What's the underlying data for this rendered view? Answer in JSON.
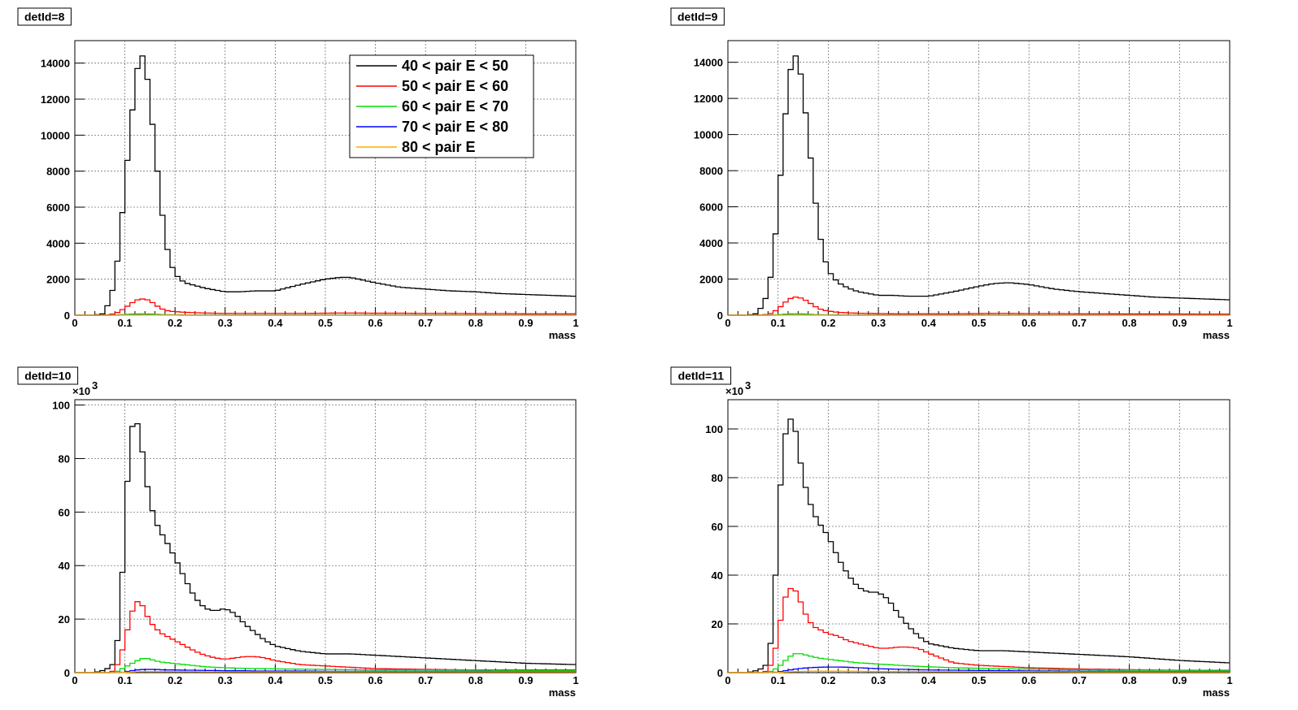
{
  "legend": [
    "40 < pair E < 50",
    "50 < pair E < 60",
    "60 < pair E < 70",
    "70 < pair E < 80",
    "80 < pair E"
  ],
  "series_colors": [
    "#000000",
    "#ff0000",
    "#00dd00",
    "#0000ff",
    "#ffaa00"
  ],
  "chart_data": [
    {
      "type": "line",
      "title": "detId=8",
      "xlabel": "mass",
      "ylabel": "",
      "xlim": [
        0,
        1
      ],
      "ylim": [
        0,
        15250
      ],
      "x_ticks": [
        0,
        0.1,
        0.2,
        0.3,
        0.4,
        0.5,
        0.6,
        0.7,
        0.8,
        0.9,
        1
      ],
      "x_tick_labels": [
        "0",
        "0.1",
        "0.2",
        "0.3",
        "0.4",
        "0.5",
        "0.6",
        "0.7",
        "0.8",
        "0.9",
        "1"
      ],
      "y_ticks": [
        0,
        2000,
        4000,
        6000,
        8000,
        10000,
        12000,
        14000
      ],
      "y_tick_labels": [
        "0",
        "2000",
        "4000",
        "6000",
        "8000",
        "10000",
        "12000",
        "14000"
      ],
      "y_multiplier": "",
      "grid": true,
      "legend_position": "top-right",
      "x": [
        0,
        0.04,
        0.06,
        0.08,
        0.09,
        0.1,
        0.11,
        0.12,
        0.13,
        0.14,
        0.15,
        0.16,
        0.17,
        0.18,
        0.19,
        0.2,
        0.21,
        0.22,
        0.24,
        0.26,
        0.28,
        0.3,
        0.33,
        0.36,
        0.4,
        0.45,
        0.5,
        0.53,
        0.55,
        0.6,
        0.65,
        0.7,
        0.75,
        0.8,
        0.85,
        0.9,
        0.95,
        1
      ],
      "series": [
        {
          "name": "40 < pair E < 50",
          "values": [
            0,
            0,
            100,
            1800,
            4200,
            7200,
            10000,
            12800,
            14600,
            14200,
            12000,
            9200,
            6800,
            4300,
            3000,
            2300,
            2000,
            1800,
            1650,
            1500,
            1400,
            1300,
            1300,
            1350,
            1350,
            1700,
            2000,
            2100,
            2100,
            1800,
            1550,
            1450,
            1350,
            1300,
            1200,
            1150,
            1100,
            1050
          ]
        },
        {
          "name": "50 < pair E < 60",
          "values": [
            0,
            0,
            0,
            80,
            220,
            400,
            600,
            800,
            900,
            900,
            800,
            600,
            400,
            280,
            220,
            200,
            180,
            160,
            140,
            120,
            110,
            100,
            100,
            100,
            100,
            100,
            110,
            120,
            120,
            110,
            110,
            100,
            100,
            90,
            90,
            80,
            80,
            80
          ]
        },
        {
          "name": "60 < pair E < 70",
          "values": [
            0,
            0,
            0,
            10,
            20,
            40,
            60,
            70,
            80,
            80,
            70,
            60,
            40,
            30,
            20,
            20,
            20,
            20,
            10,
            10,
            10,
            10,
            10,
            10,
            10,
            10,
            10,
            10,
            10,
            10,
            10,
            10,
            10,
            10,
            10,
            10,
            10,
            10
          ]
        },
        {
          "name": "70 < pair E < 80",
          "values": [
            0,
            0,
            0,
            0,
            5,
            8,
            10,
            12,
            14,
            14,
            12,
            10,
            8,
            6,
            5,
            4,
            4,
            3,
            3,
            3,
            3,
            2,
            2,
            2,
            2,
            2,
            2,
            2,
            2,
            2,
            2,
            2,
            2,
            2,
            2,
            2,
            2,
            2
          ]
        },
        {
          "name": "80 < pair E",
          "values": [
            0,
            0,
            0,
            0,
            2,
            4,
            5,
            6,
            7,
            7,
            6,
            5,
            4,
            3,
            2,
            2,
            2,
            2,
            1,
            1,
            1,
            1,
            1,
            1,
            1,
            1,
            1,
            1,
            1,
            1,
            1,
            1,
            1,
            1,
            1,
            1,
            1,
            1
          ]
        }
      ]
    },
    {
      "type": "line",
      "title": "detId=9",
      "xlabel": "mass",
      "ylabel": "",
      "xlim": [
        0,
        1
      ],
      "ylim": [
        0,
        15200
      ],
      "x_ticks": [
        0,
        0.1,
        0.2,
        0.3,
        0.4,
        0.5,
        0.6,
        0.7,
        0.8,
        0.9,
        1
      ],
      "x_tick_labels": [
        "0",
        "0.1",
        "0.2",
        "0.3",
        "0.4",
        "0.5",
        "0.6",
        "0.7",
        "0.8",
        "0.9",
        "1"
      ],
      "y_ticks": [
        0,
        2000,
        4000,
        6000,
        8000,
        10000,
        12000,
        14000
      ],
      "y_tick_labels": [
        "0",
        "2000",
        "4000",
        "6000",
        "8000",
        "10000",
        "12000",
        "14000"
      ],
      "y_multiplier": "",
      "grid": true,
      "legend_position": "",
      "x": [
        0,
        0.04,
        0.06,
        0.08,
        0.09,
        0.1,
        0.11,
        0.12,
        0.13,
        0.14,
        0.15,
        0.16,
        0.17,
        0.18,
        0.19,
        0.2,
        0.21,
        0.22,
        0.24,
        0.26,
        0.28,
        0.3,
        0.33,
        0.36,
        0.4,
        0.45,
        0.5,
        0.53,
        0.56,
        0.6,
        0.65,
        0.7,
        0.75,
        0.8,
        0.85,
        0.9,
        0.95,
        1
      ],
      "series": [
        {
          "name": "40 < pair E < 50",
          "values": [
            0,
            0,
            100,
            1200,
            3000,
            6000,
            9500,
            12800,
            14400,
            14300,
            12400,
            10000,
            7400,
            5000,
            3400,
            2500,
            2100,
            1800,
            1500,
            1300,
            1200,
            1100,
            1100,
            1050,
            1050,
            1300,
            1600,
            1750,
            1800,
            1700,
            1450,
            1300,
            1200,
            1100,
            1000,
            950,
            900,
            850
          ]
        },
        {
          "name": "50 < pair E < 60",
          "values": [
            0,
            0,
            0,
            40,
            150,
            350,
            600,
            850,
            1000,
            1000,
            900,
            750,
            550,
            380,
            280,
            230,
            190,
            160,
            130,
            110,
            100,
            90,
            80,
            80,
            80,
            80,
            90,
            100,
            100,
            90,
            90,
            80,
            80,
            70,
            70,
            70,
            60,
            60
          ]
        },
        {
          "name": "60 < pair E < 70",
          "values": [
            0,
            0,
            0,
            5,
            15,
            30,
            50,
            70,
            80,
            80,
            70,
            60,
            40,
            30,
            20,
            20,
            20,
            10,
            10,
            10,
            10,
            10,
            10,
            10,
            10,
            10,
            10,
            10,
            10,
            10,
            10,
            10,
            10,
            10,
            10,
            10,
            10,
            10
          ]
        },
        {
          "name": "70 < pair E < 80",
          "values": [
            0,
            0,
            0,
            0,
            4,
            6,
            8,
            10,
            12,
            12,
            10,
            8,
            6,
            5,
            4,
            4,
            3,
            3,
            3,
            2,
            2,
            2,
            2,
            2,
            2,
            2,
            2,
            2,
            2,
            2,
            2,
            2,
            2,
            2,
            2,
            2,
            2,
            2
          ]
        },
        {
          "name": "80 < pair E",
          "values": [
            0,
            0,
            0,
            0,
            2,
            3,
            4,
            5,
            6,
            6,
            5,
            4,
            3,
            3,
            2,
            2,
            2,
            1,
            1,
            1,
            1,
            1,
            1,
            1,
            1,
            1,
            1,
            1,
            1,
            1,
            1,
            1,
            1,
            1,
            1,
            1,
            1,
            1
          ]
        }
      ]
    },
    {
      "type": "line",
      "title": "detId=10",
      "xlabel": "mass",
      "ylabel": "",
      "xlim": [
        0,
        1
      ],
      "ylim": [
        0,
        102
      ],
      "x_ticks": [
        0,
        0.1,
        0.2,
        0.3,
        0.4,
        0.5,
        0.6,
        0.7,
        0.8,
        0.9,
        1
      ],
      "x_tick_labels": [
        "0",
        "0.1",
        "0.2",
        "0.3",
        "0.4",
        "0.5",
        "0.6",
        "0.7",
        "0.8",
        "0.9",
        "1"
      ],
      "y_ticks": [
        0,
        20,
        40,
        60,
        80,
        100
      ],
      "y_tick_labels": [
        "0",
        "20",
        "40",
        "60",
        "80",
        "100"
      ],
      "y_multiplier": "×10",
      "y_multiplier_exp": "3",
      "grid": true,
      "legend_position": "",
      "x": [
        0,
        0.04,
        0.06,
        0.07,
        0.08,
        0.09,
        0.1,
        0.11,
        0.12,
        0.13,
        0.14,
        0.15,
        0.16,
        0.17,
        0.18,
        0.2,
        0.22,
        0.24,
        0.26,
        0.28,
        0.3,
        0.32,
        0.34,
        0.36,
        0.38,
        0.4,
        0.45,
        0.5,
        0.55,
        0.6,
        0.7,
        0.8,
        0.9,
        1
      ],
      "series": [
        {
          "name": "40 < pair E < 50",
          "values": [
            0,
            0,
            1,
            2,
            4,
            20,
            55,
            88,
            96,
            90,
            75,
            64,
            57,
            53,
            50,
            43,
            35,
            28,
            24,
            23,
            24,
            22,
            18,
            15,
            12,
            10,
            8,
            7,
            7,
            6.5,
            5.5,
            4.5,
            3.5,
            3
          ]
        },
        {
          "name": "50 < pair E < 60",
          "values": [
            0,
            0,
            0,
            0,
            1,
            5,
            12,
            20,
            26,
            27,
            23,
            19,
            17,
            15,
            14,
            12,
            10,
            8,
            6.5,
            5.5,
            5,
            5.5,
            6,
            6,
            5.5,
            4.5,
            3,
            2.5,
            2,
            1.5,
            1.2,
            1,
            1,
            1
          ]
        },
        {
          "name": "60 < pair E < 70",
          "values": [
            0,
            0,
            0,
            0,
            0,
            1,
            2,
            3,
            4,
            5,
            5.5,
            5,
            4.5,
            4,
            3.8,
            3.4,
            3,
            2.6,
            2.2,
            2,
            1.8,
            1.7,
            1.6,
            1.5,
            1.5,
            1.4,
            1.3,
            1.2,
            1.1,
            1,
            1,
            0.9,
            0.8,
            0.8
          ]
        },
        {
          "name": "70 < pair E < 80",
          "values": [
            0,
            0,
            0,
            0,
            0,
            0,
            0.3,
            0.6,
            0.9,
            1.1,
            1.2,
            1.2,
            1.2,
            1.1,
            1,
            1,
            0.9,
            0.9,
            0.8,
            0.8,
            0.7,
            0.7,
            0.7,
            0.6,
            0.6,
            0.6,
            0.6,
            0.5,
            0.5,
            0.5,
            0.5,
            0.5,
            0.4,
            0.4
          ]
        },
        {
          "name": "80 < pair E",
          "values": [
            0,
            0,
            0,
            0,
            0,
            0,
            0.1,
            0.2,
            0.3,
            0.4,
            0.4,
            0.4,
            0.4,
            0.4,
            0.4,
            0.4,
            0.4,
            0.4,
            0.3,
            0.3,
            0.3,
            0.3,
            0.3,
            0.3,
            0.3,
            0.3,
            0.3,
            0.3,
            0.3,
            0.3,
            0.3,
            0.3,
            0.3,
            0.3
          ]
        }
      ]
    },
    {
      "type": "line",
      "title": "detId=11",
      "xlabel": "mass",
      "ylabel": "",
      "xlim": [
        0,
        1
      ],
      "ylim": [
        0,
        112
      ],
      "x_ticks": [
        0,
        0.1,
        0.2,
        0.3,
        0.4,
        0.5,
        0.6,
        0.7,
        0.8,
        0.9,
        1
      ],
      "x_tick_labels": [
        "0",
        "0.1",
        "0.2",
        "0.3",
        "0.4",
        "0.5",
        "0.6",
        "0.7",
        "0.8",
        "0.9",
        "1"
      ],
      "y_ticks": [
        0,
        20,
        40,
        60,
        80,
        100
      ],
      "y_tick_labels": [
        "0",
        "20",
        "40",
        "60",
        "80",
        "100"
      ],
      "y_multiplier": "×10",
      "y_multiplier_exp": "3",
      "grid": true,
      "legend_position": "",
      "x": [
        0,
        0.04,
        0.06,
        0.07,
        0.08,
        0.09,
        0.1,
        0.11,
        0.12,
        0.13,
        0.14,
        0.15,
        0.16,
        0.17,
        0.18,
        0.2,
        0.22,
        0.24,
        0.26,
        0.28,
        0.3,
        0.32,
        0.34,
        0.36,
        0.38,
        0.4,
        0.45,
        0.5,
        0.55,
        0.6,
        0.7,
        0.8,
        0.9,
        1
      ],
      "series": [
        {
          "name": "40 < pair E < 50",
          "values": [
            0,
            0,
            1,
            2,
            4,
            20,
            60,
            94,
            102,
            106,
            92,
            80,
            72,
            66,
            62,
            56,
            47,
            40,
            35,
            33,
            33,
            30,
            24,
            19,
            15,
            12,
            10,
            9,
            9,
            8.5,
            7.5,
            6.5,
            5,
            4
          ]
        },
        {
          "name": "50 < pair E < 60",
          "values": [
            0,
            0,
            0,
            0,
            1,
            5,
            15,
            28,
            34,
            35,
            32,
            26,
            22,
            19,
            18,
            16,
            15,
            13,
            12,
            11,
            10,
            10,
            10.5,
            10.5,
            10,
            8,
            4,
            3,
            2.5,
            2,
            1.5,
            1.2,
            1,
            1
          ]
        },
        {
          "name": "60 < pair E < 70",
          "values": [
            0,
            0,
            0,
            0,
            0,
            1,
            2,
            4,
            6,
            7.5,
            8,
            7.5,
            7,
            6.5,
            6,
            5.5,
            5,
            4.5,
            4,
            3.8,
            3.5,
            3.3,
            3,
            2.8,
            2.6,
            2.4,
            2,
            1.8,
            1.6,
            1.4,
            1.2,
            1,
            1,
            0.9
          ]
        },
        {
          "name": "70 < pair E < 80",
          "values": [
            0,
            0,
            0,
            0,
            0,
            0,
            0.3,
            0.6,
            1,
            1.3,
            1.6,
            1.8,
            2,
            2.1,
            2.2,
            2.3,
            2.3,
            2.2,
            2,
            1.8,
            1.6,
            1.5,
            1.4,
            1.3,
            1.2,
            1.1,
            1,
            0.9,
            0.8,
            0.7,
            0.6,
            0.5,
            0.5,
            0.5
          ]
        },
        {
          "name": "80 < pair E",
          "values": [
            0,
            0,
            0,
            0,
            0,
            0,
            0.1,
            0.2,
            0.3,
            0.4,
            0.5,
            0.5,
            0.6,
            0.6,
            0.6,
            0.6,
            0.6,
            0.6,
            0.6,
            0.5,
            0.5,
            0.5,
            0.5,
            0.5,
            0.5,
            0.4,
            0.4,
            0.4,
            0.4,
            0.4,
            0.3,
            0.3,
            0.3,
            0.3
          ]
        }
      ]
    }
  ]
}
